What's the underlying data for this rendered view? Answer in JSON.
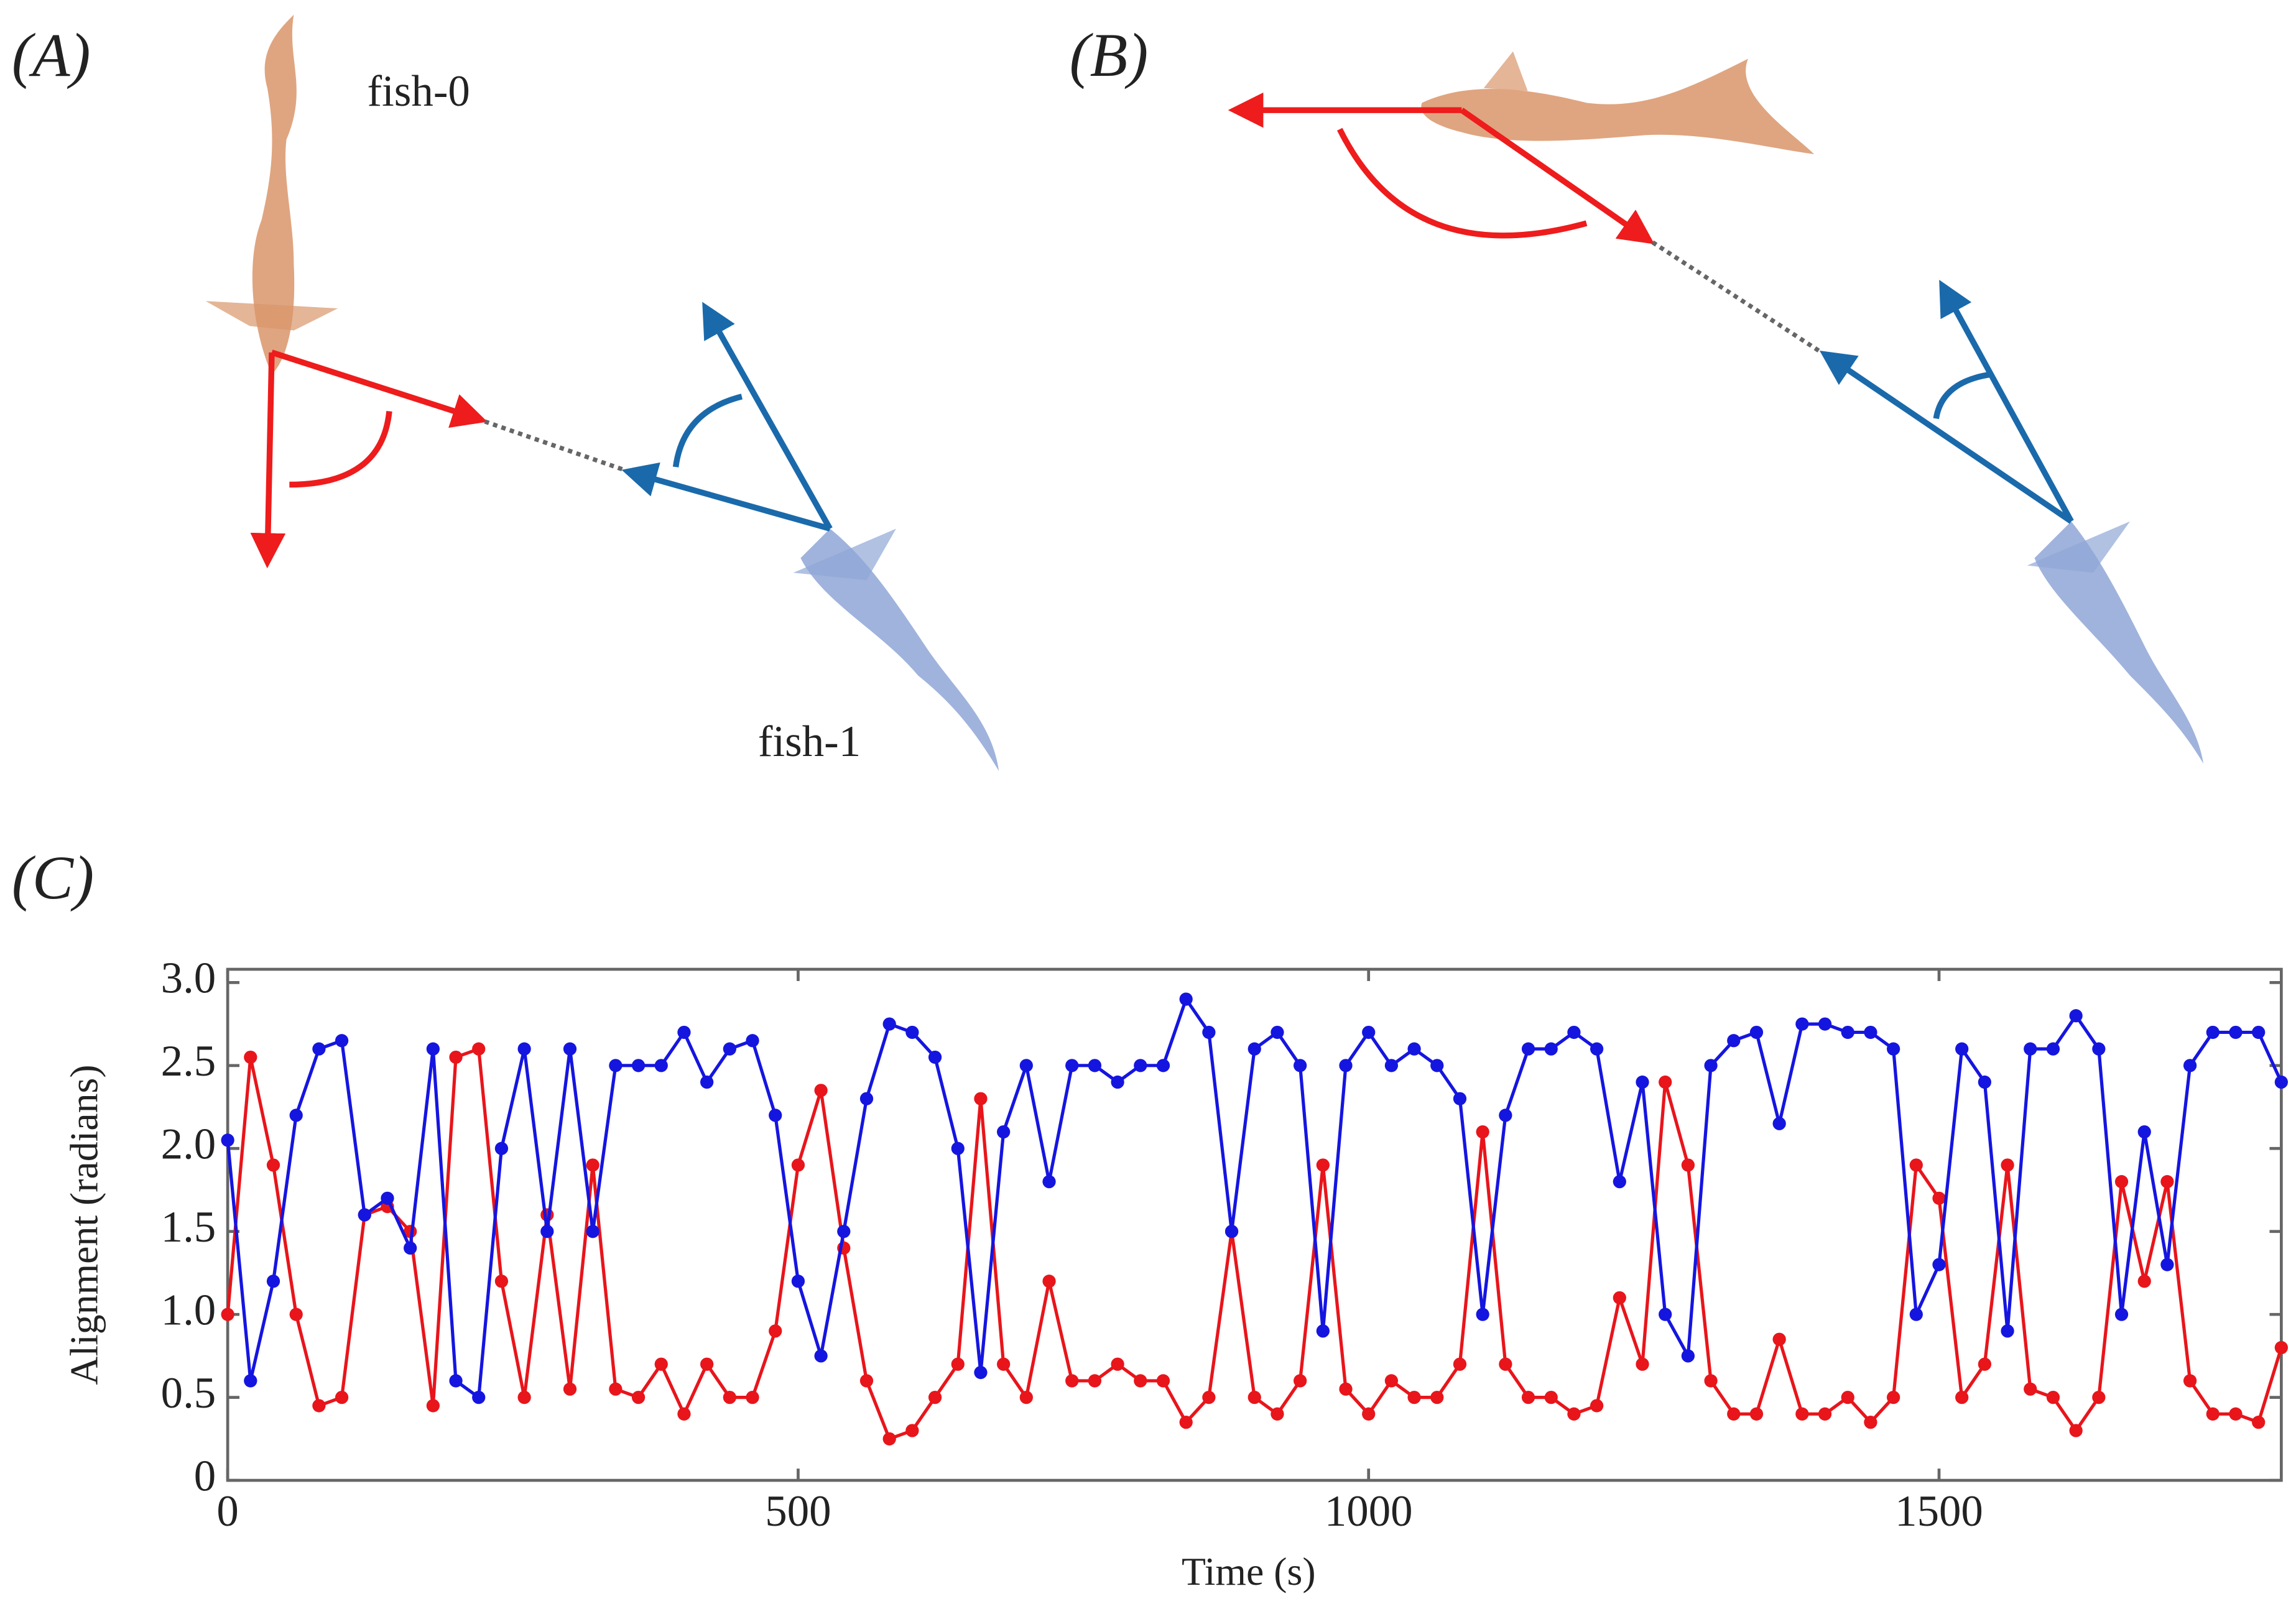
{
  "panels": {
    "a": {
      "label": "(A)",
      "fish0": "fish-0",
      "fish1": "fish-1"
    },
    "b": {
      "label": "(B)"
    },
    "c": {
      "label": "(C)"
    }
  },
  "chart_data": {
    "type": "line",
    "xlabel": "Time (s)",
    "ylabel": "Alignment (radians)",
    "x": [
      0,
      20,
      40,
      60,
      80,
      100,
      120,
      140,
      160,
      180,
      200,
      220,
      240,
      260,
      280,
      300,
      320,
      340,
      360,
      380,
      400,
      420,
      440,
      460,
      480,
      500,
      520,
      540,
      560,
      580,
      600,
      620,
      640,
      660,
      680,
      700,
      720,
      740,
      760,
      780,
      800,
      820,
      840,
      860,
      880,
      900,
      920,
      940,
      960,
      980,
      1000,
      1020,
      1040,
      1060,
      1080,
      1100,
      1120,
      1140,
      1160,
      1180,
      1200,
      1220,
      1240,
      1260,
      1280,
      1300,
      1320,
      1340,
      1360,
      1380,
      1400,
      1420,
      1440,
      1460,
      1480,
      1500,
      1520,
      1540,
      1560,
      1580,
      1600,
      1620,
      1640,
      1660,
      1680,
      1700,
      1720,
      1740,
      1760,
      1780,
      1800
    ],
    "series": [
      {
        "name": "fish-0",
        "color": "#e8151b",
        "values": [
          1.0,
          2.55,
          1.9,
          1.0,
          0.45,
          0.5,
          1.6,
          1.65,
          1.5,
          0.45,
          2.55,
          2.6,
          1.2,
          0.5,
          1.6,
          0.55,
          1.9,
          0.55,
          0.5,
          0.7,
          0.4,
          0.7,
          0.5,
          0.5,
          0.9,
          1.9,
          2.35,
          1.4,
          0.6,
          0.25,
          0.3,
          0.5,
          0.7,
          2.3,
          0.7,
          0.5,
          1.2,
          0.6,
          0.6,
          0.7,
          0.6,
          0.6,
          0.35,
          0.5,
          1.5,
          0.5,
          0.4,
          0.6,
          1.9,
          0.55,
          0.4,
          0.6,
          0.5,
          0.5,
          0.7,
          2.1,
          0.7,
          0.5,
          0.5,
          0.4,
          0.45,
          1.1,
          0.7,
          2.4,
          1.9,
          0.6,
          0.4,
          0.4,
          0.85,
          0.4,
          0.4,
          0.5,
          0.35,
          0.5,
          1.9,
          1.7,
          0.5,
          0.7,
          1.9,
          0.55,
          0.5,
          0.3,
          0.5,
          1.8,
          1.2,
          1.8,
          0.6,
          0.4,
          0.4,
          0.35,
          0.8
        ]
      },
      {
        "name": "fish-1",
        "color": "#1515e0",
        "values": [
          2.05,
          0.6,
          1.2,
          2.2,
          2.6,
          2.65,
          1.6,
          1.7,
          1.4,
          2.6,
          0.6,
          0.5,
          2.0,
          2.6,
          1.5,
          2.6,
          1.5,
          2.5,
          2.5,
          2.5,
          2.7,
          2.4,
          2.6,
          2.65,
          2.2,
          1.2,
          0.75,
          1.5,
          2.3,
          2.75,
          2.7,
          2.55,
          2.0,
          0.65,
          2.1,
          2.5,
          1.8,
          2.5,
          2.5,
          2.4,
          2.5,
          2.5,
          2.9,
          2.7,
          1.5,
          2.6,
          2.7,
          2.5,
          0.9,
          2.5,
          2.7,
          2.5,
          2.6,
          2.5,
          2.3,
          1.0,
          2.2,
          2.6,
          2.6,
          2.7,
          2.6,
          1.8,
          2.4,
          1.0,
          0.75,
          2.5,
          2.65,
          2.7,
          2.15,
          2.75,
          2.75,
          2.7,
          2.7,
          2.6,
          1.0,
          1.3,
          2.6,
          2.4,
          0.9,
          2.6,
          2.6,
          2.8,
          2.6,
          1.0,
          2.1,
          1.3,
          2.5,
          2.7,
          2.7,
          2.7,
          2.4
        ]
      }
    ],
    "xlim": [
      0,
      1800
    ],
    "ylim": [
      0,
      3.08
    ],
    "xticks": [
      0,
      500,
      1000,
      1500
    ],
    "yticks": [
      0,
      0.5,
      {
        "value": 1,
        "label": "1.0"
      },
      1.5,
      {
        "value": 2,
        "label": "2.0"
      },
      2.5,
      {
        "value": 3,
        "label": "3.0"
      }
    ]
  }
}
